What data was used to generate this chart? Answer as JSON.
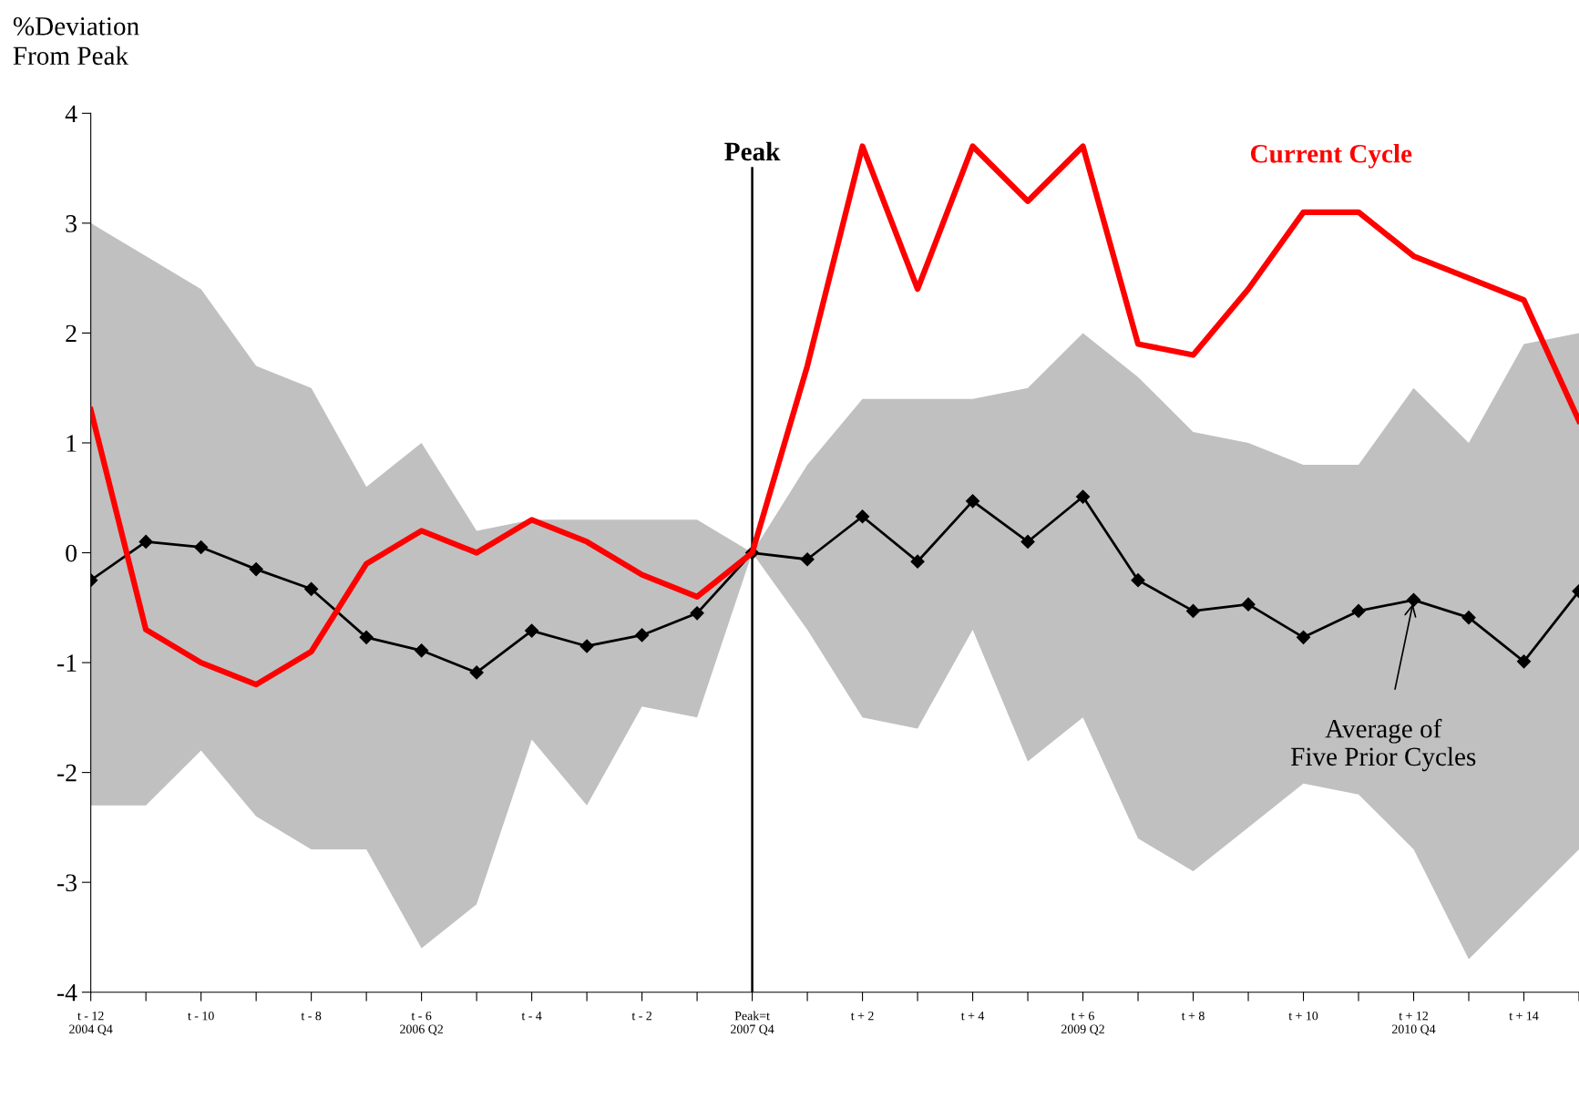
{
  "chart_data": {
    "type": "line",
    "ylabel": "%Deviation\nFrom Peak",
    "categories": [
      "t - 12\n2004 Q4",
      null,
      "t - 10",
      null,
      "t - 8",
      null,
      "t - 6\n2006 Q2",
      null,
      "t - 4",
      null,
      "t - 2",
      null,
      "Peak=t\n2007 Q4",
      null,
      "t + 2",
      null,
      "t + 4",
      null,
      "t + 6\n2009 Q2",
      null,
      "t + 8",
      null,
      "t + 10",
      null,
      "t + 12\n2010 Q4",
      null,
      "t + 14",
      null
    ],
    "series": [
      {
        "name": "Current Cycle",
        "color": "#ff0000",
        "marker": "none",
        "values": [
          1.3,
          -0.7,
          -1.0,
          -1.2,
          -0.9,
          -0.1,
          0.2,
          0.0,
          0.3,
          0.1,
          -0.2,
          -0.4,
          0.0,
          1.7,
          3.7,
          2.4,
          3.7,
          3.2,
          3.7,
          1.9,
          1.8,
          2.4,
          3.1,
          3.1,
          2.7,
          2.5,
          2.3,
          1.2
        ]
      },
      {
        "name": "Average of\nFive Prior Cycles",
        "color": "#000000",
        "marker": "diamond",
        "values": [
          -0.25,
          0.1,
          0.05,
          -0.15,
          -0.33,
          -0.77,
          -0.89,
          -1.09,
          -0.71,
          -0.85,
          -0.75,
          -0.55,
          0.0,
          -0.06,
          0.33,
          -0.08,
          0.47,
          0.1,
          0.51,
          -0.25,
          -0.53,
          -0.47,
          -0.77,
          -0.53,
          -0.43,
          -0.59,
          -0.99,
          -0.35
        ],
        "lower": [
          -2.3,
          -2.3,
          -1.8,
          -2.4,
          -2.7,
          -2.7,
          -3.6,
          -3.2,
          -1.7,
          -2.3,
          -1.4,
          -1.5,
          0.0,
          -0.7,
          -1.5,
          -1.6,
          -0.7,
          -1.9,
          -1.5,
          -2.6,
          -2.9,
          -2.5,
          -2.1,
          -2.2,
          -2.7,
          -3.7,
          -3.2,
          -2.7
        ],
        "upper": [
          3.0,
          2.7,
          2.4,
          1.7,
          1.5,
          0.6,
          1.0,
          0.2,
          0.3,
          0.3,
          0.3,
          0.3,
          0.0,
          0.8,
          1.4,
          1.4,
          1.4,
          1.5,
          2.0,
          1.6,
          1.1,
          1.0,
          0.8,
          0.8,
          1.5,
          1.0,
          1.9,
          2.0
        ]
      }
    ],
    "ref_lines": [
      {
        "axis": "x",
        "value": "Peak=t\n2007 Q4",
        "label": "Peak",
        "color": "#000000"
      }
    ],
    "ylim": [
      -4,
      4
    ],
    "yticks": [
      -4,
      -3,
      -2,
      -1,
      0,
      1,
      2,
      3,
      4
    ],
    "grid": false,
    "legend": false
  }
}
